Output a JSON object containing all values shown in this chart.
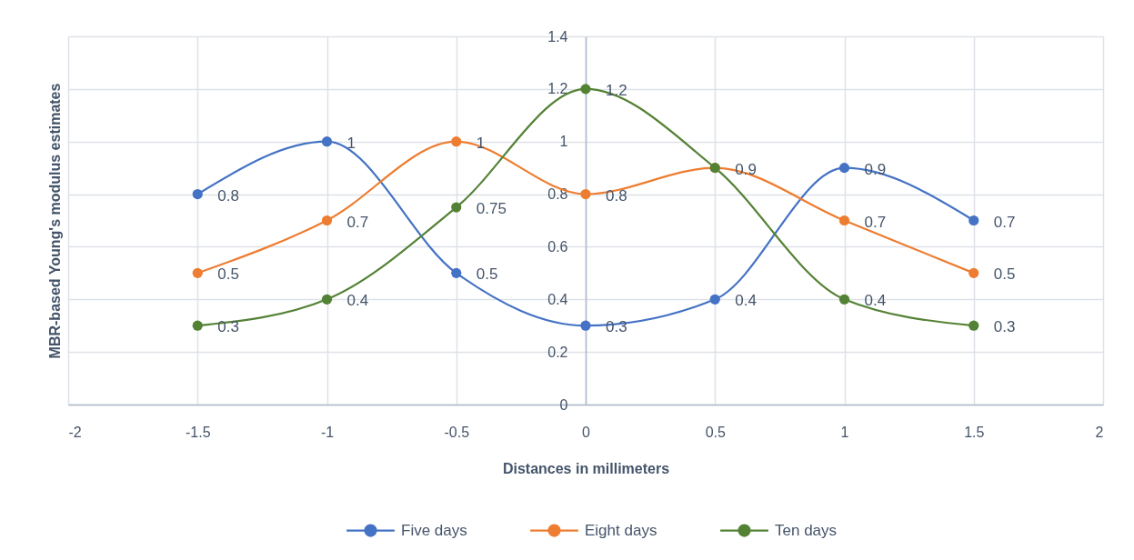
{
  "chart_data": {
    "type": "line",
    "xlabel": "Distances in millimeters",
    "ylabel": "MBR-based Young's modulus estimates",
    "x": [
      -1.5,
      -1,
      -0.5,
      0,
      0.5,
      1,
      1.5
    ],
    "series": [
      {
        "name": "Five days",
        "color": "#4472c4",
        "values": [
          0.8,
          1,
          0.5,
          0.3,
          0.4,
          0.9,
          0.7
        ],
        "value_labels": [
          "0.8",
          "1",
          "0.5",
          "0.3",
          "0.4",
          "0.9",
          "0.7"
        ]
      },
      {
        "name": "Eight days",
        "color": "#ed7d31",
        "values": [
          0.5,
          0.7,
          1,
          0.8,
          0.9,
          0.7,
          0.5
        ],
        "value_labels": [
          "0.5",
          "0.7",
          "1",
          "0.8",
          "0.9",
          "0.7",
          "0.5"
        ]
      },
      {
        "name": "Ten days",
        "color": "#548235",
        "values": [
          0.3,
          0.4,
          0.75,
          1.2,
          0.9,
          0.4,
          0.3
        ],
        "value_labels": [
          "0.3",
          "0.4",
          "0.75",
          "1.2",
          null,
          "0.4",
          "0.3"
        ]
      }
    ],
    "xlim": [
      -2,
      2
    ],
    "xticks": [
      -2,
      -1.5,
      -1,
      -0.5,
      0,
      0.5,
      1,
      1.5,
      2
    ],
    "ylim": [
      0,
      1.4
    ],
    "yticks": [
      0,
      0.2,
      0.4,
      0.6,
      0.8,
      1,
      1.2,
      1.4
    ],
    "grid": true,
    "legend": "bottom",
    "marker": "circle",
    "line_style": "solid"
  }
}
